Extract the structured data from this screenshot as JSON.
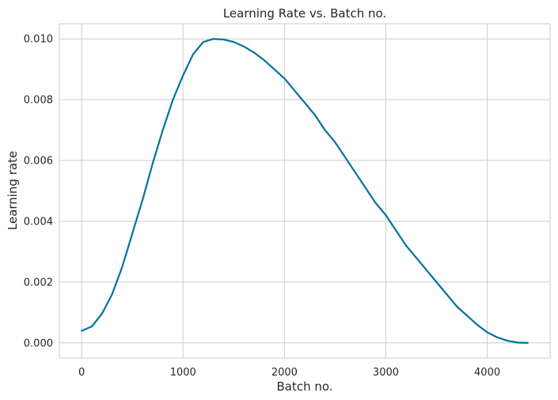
{
  "chart_data": {
    "type": "line",
    "title": "Learning Rate vs. Batch no.",
    "xlabel": "Batch no.",
    "ylabel": "Learning rate",
    "xlim": [
      -220,
      4620
    ],
    "ylim": [
      -0.0005,
      0.0105
    ],
    "xticks": [
      0,
      1000,
      2000,
      3000,
      4000
    ],
    "yticks": [
      0.0,
      0.002,
      0.004,
      0.006,
      0.008,
      0.01
    ],
    "xtick_labels": [
      "0",
      "1000",
      "2000",
      "3000",
      "4000"
    ],
    "ytick_labels": [
      "0.000",
      "0.002",
      "0.004",
      "0.006",
      "0.008",
      "0.010"
    ],
    "grid": true,
    "line_color": "#0072a0",
    "series": [
      {
        "x": [
          0,
          100,
          200,
          300,
          400,
          500,
          600,
          700,
          800,
          900,
          1000,
          1100,
          1200,
          1300,
          1400,
          1500,
          1600,
          1700,
          1800,
          1900,
          2000,
          2100,
          2200,
          2300,
          2400,
          2500,
          2600,
          2700,
          2800,
          2900,
          3000,
          3100,
          3200,
          3300,
          3400,
          3500,
          3600,
          3700,
          3800,
          3900,
          4000,
          4100,
          4200,
          4300,
          4400
        ],
        "values": [
          0.0004,
          0.00054,
          0.00096,
          0.0016,
          0.0025,
          0.0036,
          0.0047,
          0.0059,
          0.007,
          0.008,
          0.0088,
          0.0095,
          0.0099,
          0.01,
          0.00998,
          0.0099,
          0.00975,
          0.00955,
          0.0093,
          0.009,
          0.0087,
          0.0083,
          0.0079,
          0.0075,
          0.007,
          0.0066,
          0.0061,
          0.0056,
          0.0051,
          0.0046,
          0.0042,
          0.0037,
          0.0032,
          0.0028,
          0.0024,
          0.002,
          0.0016,
          0.0012,
          0.0009,
          0.0006,
          0.00035,
          0.00018,
          7e-05,
          1e-05,
          0.0
        ]
      }
    ]
  }
}
